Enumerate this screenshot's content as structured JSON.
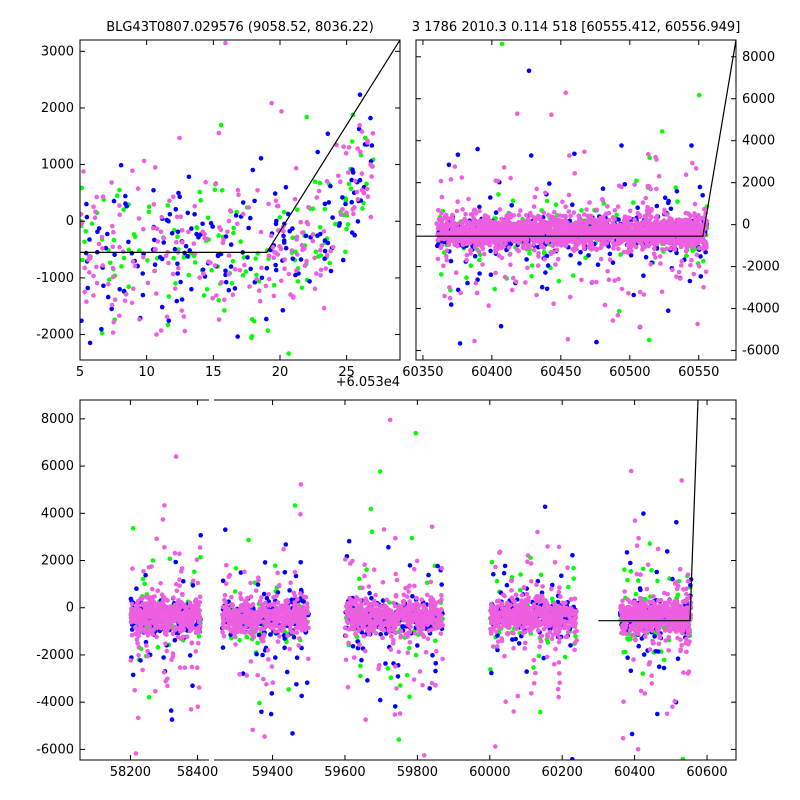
{
  "figure": {
    "background": "#ffffff"
  },
  "colors": {
    "green": "#00ff00",
    "blue": "#0000ff",
    "pink": "#ee5ee0",
    "line": "#000000"
  },
  "chart_data": [
    {
      "id": "top-left",
      "type": "scatter",
      "title": "BLG43T0807.029576 (9058.52, 8036.22)",
      "xlim": [
        5,
        29
      ],
      "ylim": [
        -2450,
        3200
      ],
      "x_offset_label": "+6.053e4",
      "xticks": [
        5,
        10,
        15,
        20,
        25
      ],
      "yticks": [
        -2000,
        -1000,
        0,
        1000,
        2000,
        3000
      ],
      "ytick_side": "left",
      "model_line": [
        [
          5,
          -550
        ],
        [
          19,
          -550
        ],
        [
          29,
          3200
        ]
      ]
    },
    {
      "id": "top-right",
      "type": "scatter",
      "title": "3 1786 2010.3 0.114 518 [60555.412, 60556.949]",
      "xlim": [
        60345,
        60577
      ],
      "ylim": [
        -6450,
        8800
      ],
      "xticks": [
        60350,
        60400,
        60450,
        60500,
        60550
      ],
      "yticks": [
        -6000,
        -4000,
        -2000,
        0,
        2000,
        4000,
        6000,
        8000
      ],
      "ytick_side": "right",
      "model_line": [
        [
          60345,
          -550
        ],
        [
          60553,
          -550
        ],
        [
          60577,
          8800
        ]
      ]
    },
    {
      "id": "bottom",
      "type": "scatter",
      "title": "",
      "xlim": [
        58050,
        60680
      ],
      "ylim": [
        -6450,
        8800
      ],
      "xticks": [
        58200,
        58400,
        59400,
        59600,
        59800,
        60000,
        60200,
        60400,
        60600
      ],
      "yticks": [
        -6000,
        -4000,
        -2000,
        0,
        2000,
        4000,
        6000,
        8000
      ],
      "ytick_side": "left",
      "seasons": [
        [
          58200,
          58410
        ],
        [
          59260,
          59500
        ],
        [
          59600,
          59870
        ],
        [
          60000,
          60240
        ],
        [
          60360,
          60555
        ]
      ],
      "model_line": [
        [
          60300,
          -550
        ],
        [
          60553,
          -550
        ],
        [
          60575,
          8800
        ]
      ]
    }
  ]
}
